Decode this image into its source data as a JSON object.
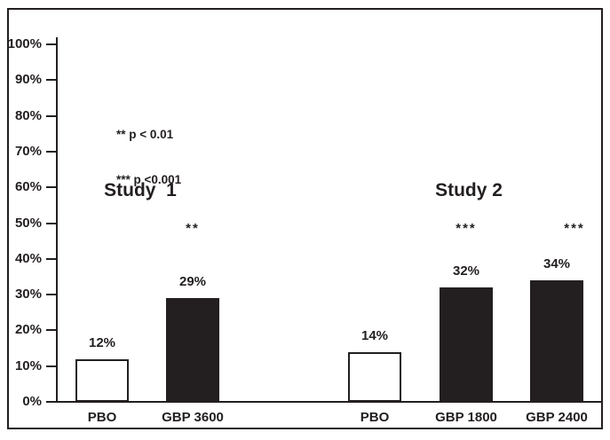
{
  "chart_data": {
    "type": "bar",
    "title": "",
    "xlabel": "",
    "ylabel": "",
    "ylim": [
      0,
      100
    ],
    "grid": false,
    "legend_position": "none",
    "y_axis": {
      "min": 0,
      "max": 100,
      "tick_step": 10,
      "tick_labels": [
        "100%",
        "90%",
        "80%",
        "70%",
        "60%",
        "50%",
        "40%",
        "30%",
        "20%",
        "10%",
        "0%"
      ]
    },
    "categories": [
      "PBO",
      "GBP 3600",
      "PBO",
      "GBP 1800",
      "GBP 2400"
    ],
    "values": [
      12,
      29,
      14,
      32,
      34
    ],
    "groups": [
      {
        "label": "Study  1",
        "bars": [
          {
            "category": "PBO",
            "value": 12,
            "value_label": "12%",
            "fill": "white",
            "significance": ""
          },
          {
            "category": "GBP 3600",
            "value": 29,
            "value_label": "29%",
            "fill": "black",
            "significance": "**"
          }
        ]
      },
      {
        "label": "Study 2",
        "bars": [
          {
            "category": "PBO",
            "value": 14,
            "value_label": "14%",
            "fill": "white",
            "significance": ""
          },
          {
            "category": "GBP 1800",
            "value": 32,
            "value_label": "32%",
            "fill": "black",
            "significance": "***"
          },
          {
            "category": "GBP 2400",
            "value": 34,
            "value_label": "34%",
            "fill": "black",
            "significance": "***"
          }
        ]
      }
    ],
    "p_note": {
      "line1": "** p < 0.01",
      "line2": "*** p <0.001"
    },
    "colors": {
      "black": "#231f20",
      "white": "#ffffff",
      "ink": "#231f20",
      "background": "#ffffff"
    }
  }
}
